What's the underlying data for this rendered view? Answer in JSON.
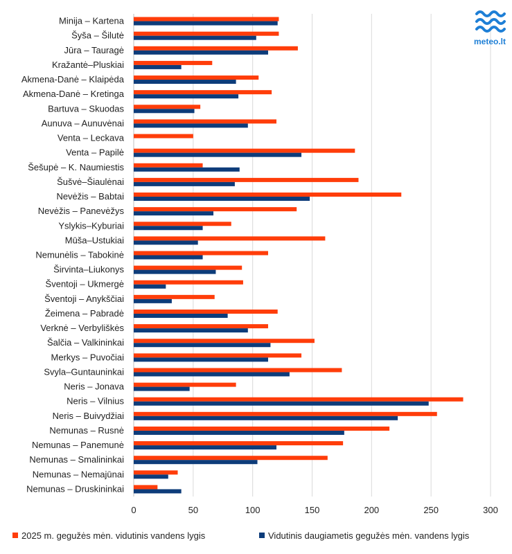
{
  "logo": {
    "text": "meteo.lt",
    "color": "#1e7fd6"
  },
  "chart_data": {
    "type": "bar",
    "orientation": "horizontal",
    "categories": [
      "Minija – Kartena",
      "Šyša – Šilutė",
      "Jūra – Tauragė",
      "Kražantė–Pluskiai",
      "Akmena-Danė – Klaipėda",
      "Akmena-Danė – Kretinga",
      "Bartuva – Skuodas",
      "Aunuva – Aunuvėnai",
      "Venta – Leckava",
      "Venta – Papilė",
      "Šešupė – K. Naumiestis",
      "Šušvė–Šiaulėnai",
      "Nevėžis – Babtai",
      "Nevėžis – Panevėžys",
      "Yslykis–Kyburiai",
      "Mūša–Ustukiai",
      "Nemunėlis – Tabokinė",
      "Širvinta–Liukonys",
      "Šventoji – Ukmergė",
      "Šventoji – Anykščiai",
      "Žeimena – Pabradė",
      "Verknė – Verbyliškės",
      "Šalčia – Valkininkai",
      "Merkys – Puvočiai",
      "Svyla–Guntauninkai",
      "Neris – Jonava",
      "Neris – Vilnius",
      "Neris – Buivydžiai",
      "Nemunas – Rusnė",
      "Nemunas – Panemunė",
      "Nemunas – Smalininkai",
      "Nemunas – Nemajūnai",
      "Nemunas – Druskininkai"
    ],
    "series": [
      {
        "name": "2025 m. gegužės mėn. vidutinis vandens lygis",
        "color": "#ff3d0a",
        "values": [
          122,
          122,
          138,
          66,
          105,
          116,
          56,
          120,
          50,
          186,
          58,
          189,
          225,
          137,
          82,
          161,
          113,
          91,
          92,
          68,
          121,
          113,
          152,
          141,
          175,
          86,
          277,
          255,
          215,
          176,
          163,
          37,
          20
        ]
      },
      {
        "name": "Vidutinis daugiametis gegužės mėn. vandens lygis",
        "color": "#0d3c7a",
        "values": [
          121,
          103,
          113,
          40,
          86,
          88,
          51,
          96,
          null,
          141,
          89,
          85,
          148,
          67,
          58,
          54,
          58,
          69,
          27,
          32,
          79,
          96,
          115,
          113,
          131,
          47,
          248,
          222,
          177,
          120,
          104,
          29,
          40
        ]
      }
    ],
    "xlim": [
      0,
      300
    ],
    "xticks": [
      0,
      50,
      100,
      150,
      200,
      250,
      300
    ],
    "grid": true,
    "legend_position": "bottom"
  }
}
